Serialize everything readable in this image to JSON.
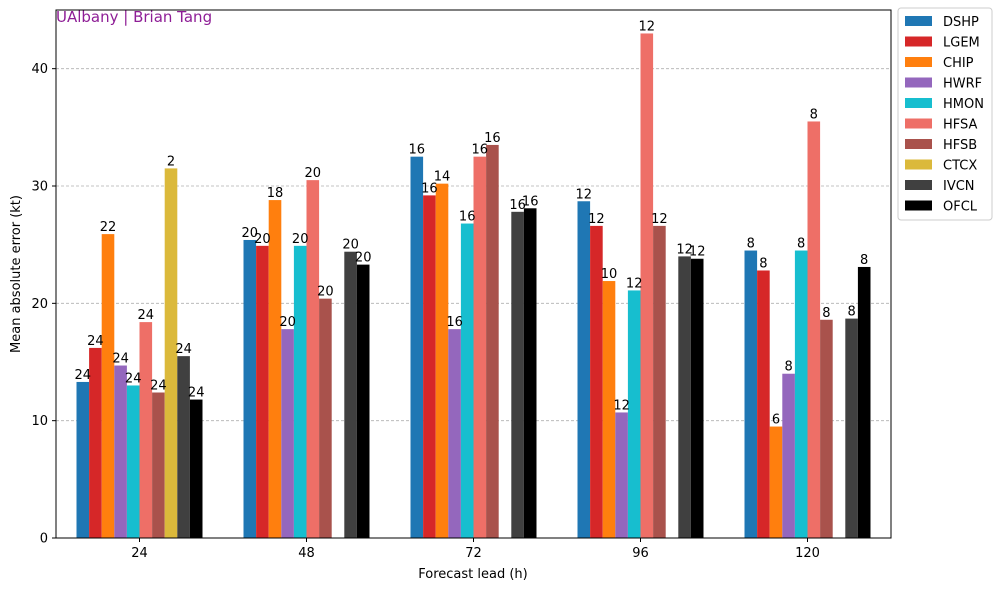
{
  "chart_data": {
    "type": "bar",
    "watermark": "UAlbany | Brian Tang",
    "xlabel": "Forecast lead (h)",
    "ylabel": "Mean absolute error (kt)",
    "ylim": [
      0,
      45
    ],
    "yticks": [
      0,
      10,
      20,
      30,
      40
    ],
    "grid": true,
    "legend_position": "outside-right-top",
    "categories": [
      "24",
      "48",
      "72",
      "96",
      "120"
    ],
    "series": [
      {
        "name": "DSHP",
        "color": "#1f77b4",
        "values": [
          13.3,
          25.4,
          32.5,
          28.7,
          24.5
        ],
        "counts": [
          "24",
          "20",
          "16",
          "12",
          "8"
        ]
      },
      {
        "name": "LGEM",
        "color": "#d62728",
        "values": [
          16.2,
          24.9,
          29.2,
          26.6,
          22.8
        ],
        "counts": [
          "24",
          "20",
          "16",
          "12",
          "8"
        ]
      },
      {
        "name": "CHIP",
        "color": "#ff7f0e",
        "values": [
          25.9,
          28.8,
          30.2,
          21.9,
          9.5
        ],
        "counts": [
          "22",
          "18",
          "14",
          "10",
          "6"
        ]
      },
      {
        "name": "HWRF",
        "color": "#9467bd",
        "values": [
          14.7,
          17.8,
          17.8,
          10.7,
          14.0
        ],
        "counts": [
          "24",
          "20",
          "16",
          "12",
          "8"
        ]
      },
      {
        "name": "HMON",
        "color": "#17becf",
        "values": [
          13.0,
          24.9,
          26.8,
          21.1,
          24.5
        ],
        "counts": [
          "24",
          "20",
          "16",
          "12",
          "8"
        ]
      },
      {
        "name": "HFSA",
        "color": "#ee6f67",
        "values": [
          18.4,
          30.5,
          32.5,
          43.0,
          35.5
        ],
        "counts": [
          "24",
          "20",
          "16",
          "12",
          "8"
        ]
      },
      {
        "name": "HFSB",
        "color": "#a9524c",
        "values": [
          12.4,
          20.4,
          33.5,
          26.6,
          18.6
        ],
        "counts": [
          "24",
          "20",
          "16",
          "12",
          "8"
        ]
      },
      {
        "name": "CTCX",
        "color": "#dbb93b",
        "values": [
          31.5,
          null,
          null,
          null,
          null
        ],
        "counts": [
          "2",
          null,
          null,
          null,
          null
        ]
      },
      {
        "name": "IVCN",
        "color": "#404040",
        "values": [
          15.5,
          24.4,
          27.8,
          24.0,
          18.7
        ],
        "counts": [
          "24",
          "20",
          "16",
          "12",
          "8"
        ]
      },
      {
        "name": "OFCL",
        "color": "#000000",
        "values": [
          11.8,
          23.3,
          28.1,
          23.8,
          23.1
        ],
        "counts": [
          "24",
          "20",
          "16",
          "12",
          "8"
        ]
      }
    ]
  }
}
